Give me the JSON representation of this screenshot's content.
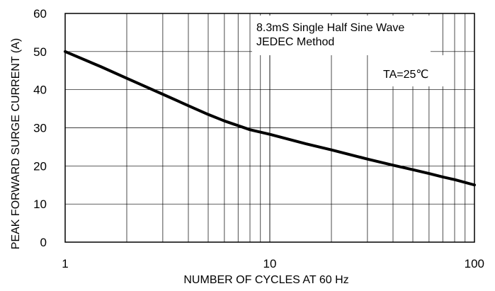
{
  "chart_data": {
    "type": "line",
    "title": "",
    "xlabel": "NUMBER OF CYCLES AT 60 Hz",
    "ylabel": "PEAK FORWARD SURGE CURRENT (A)",
    "x_scale": "log",
    "xlim": [
      1,
      100
    ],
    "ylim": [
      0,
      60
    ],
    "x_ticks": [
      1,
      10,
      100
    ],
    "x_tick_labels": [
      "1",
      "10",
      "100"
    ],
    "y_ticks": [
      0,
      10,
      20,
      30,
      40,
      50,
      60
    ],
    "y_tick_labels": [
      "0",
      "10",
      "20",
      "30",
      "40",
      "50",
      "60"
    ],
    "grid": true,
    "annotations": [
      "8.3mS Single Half Sine Wave",
      "JEDEC Method",
      "TA=25℃"
    ],
    "series": [
      {
        "color": "#000000",
        "x": [
          1,
          1.5,
          2,
          3,
          4,
          5,
          6,
          8,
          10,
          15,
          20,
          30,
          40,
          50,
          60,
          70,
          80,
          100
        ],
        "y": [
          50,
          46,
          43,
          38.8,
          35.8,
          33.5,
          31.8,
          29.5,
          28.3,
          25.8,
          24.2,
          21.8,
          20.2,
          19.0,
          18.0,
          17.1,
          16.4,
          15.0
        ]
      }
    ]
  }
}
